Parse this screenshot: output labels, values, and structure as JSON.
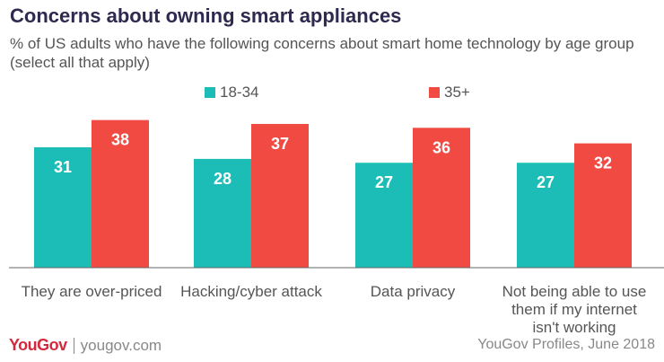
{
  "chart_data": {
    "type": "bar",
    "title": "Concerns about owning smart appliances",
    "subtitle": "% of US adults who have the following concerns about smart home technology by age group (select all that apply)",
    "categories": [
      [
        "They are over-priced"
      ],
      [
        "Hacking/cyber attack"
      ],
      [
        "Data privacy"
      ],
      [
        "Not being able to use",
        "them if my internet",
        "isn't working"
      ]
    ],
    "series": [
      {
        "name": "18-34",
        "color": "#1bbdb6",
        "values": [
          31,
          28,
          27,
          27
        ]
      },
      {
        "name": "35+",
        "color": "#f04a43",
        "values": [
          38,
          37,
          36,
          32
        ]
      }
    ],
    "ylim": [
      0,
      40
    ],
    "xlabel": "",
    "ylabel": ""
  },
  "footer": {
    "brand": "YouGov",
    "url": "yougov.com",
    "source": "YouGov Profiles, June 2018"
  }
}
